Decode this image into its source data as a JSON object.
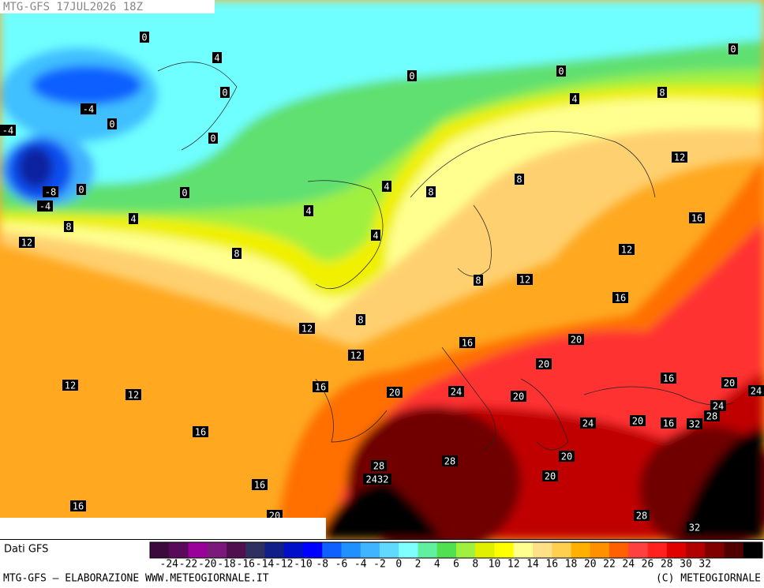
{
  "header": {
    "title": "MTG-GFS 17JUL2026 18Z"
  },
  "map": {
    "contour_labels": [
      "0",
      "4",
      "0",
      "-4",
      "0",
      "0",
      "-4",
      "-8",
      "0",
      "-4",
      "0",
      "4",
      "8",
      "12",
      "0",
      "0",
      "0",
      "4",
      "8",
      "4",
      "8",
      "8",
      "12",
      "16",
      "4",
      "4",
      "8",
      "12",
      "12",
      "8",
      "16",
      "12",
      "8",
      "16",
      "20",
      "12",
      "20",
      "12",
      "12",
      "16",
      "20",
      "24",
      "20",
      "16",
      "20",
      "24",
      "24",
      "28",
      "24",
      "20",
      "16",
      "32",
      "16",
      "20",
      "28",
      "28",
      "2432",
      "20",
      "16",
      "16",
      "28",
      "32",
      "20"
    ]
  },
  "legend": {
    "source": "Dati GFS",
    "colors": [
      "#3c0a3c",
      "#5a0a5a",
      "#9a009a",
      "#7a1a7a",
      "#501050",
      "#303060",
      "#102088",
      "#0010c8",
      "#0000ff",
      "#1060ff",
      "#2090ff",
      "#40b4ff",
      "#60d8ff",
      "#80ffff",
      "#60f0a0",
      "#50e050",
      "#a0f040",
      "#e0f000",
      "#ffff00",
      "#ffff90",
      "#ffe088",
      "#ffd050",
      "#ffb000",
      "#ff9000",
      "#ff6000",
      "#ff4040",
      "#ff2020",
      "#e00000",
      "#b00000",
      "#800000",
      "#500000",
      "#000000"
    ],
    "labels": [
      "-24",
      "-22",
      "-20",
      "-18",
      "-16",
      "-14",
      "-12",
      "-10",
      "-8",
      "-6",
      "-4",
      "-2",
      "0",
      "2",
      "4",
      "6",
      "8",
      "10",
      "12",
      "14",
      "16",
      "18",
      "20",
      "22",
      "24",
      "26",
      "28",
      "30",
      "32"
    ]
  },
  "footer": {
    "left": "MTG-GFS — ELABORAZIONE WWW.METEOGIORNALE.IT",
    "right": "(C) METEOGIORNALE"
  }
}
